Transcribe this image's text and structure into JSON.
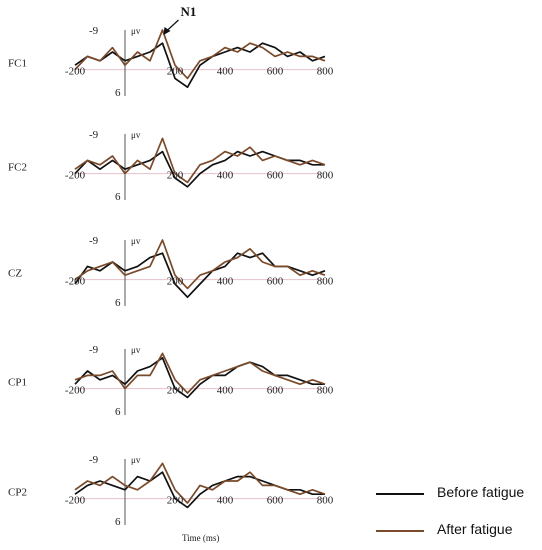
{
  "chart_data": {
    "type": "line",
    "xlabel": "Time (ms)",
    "ylabel_unit": "μv",
    "xlim": [
      -200,
      800
    ],
    "ylim": [
      -9,
      6
    ],
    "y_axis_inverted": true,
    "x_ticks": [
      "-200",
      "200",
      "400",
      "600",
      "800"
    ],
    "y_ticks": [
      "-9",
      "6"
    ],
    "annotation": {
      "text": "N1",
      "x": 150,
      "y": -9
    },
    "colors": {
      "before": "#111111",
      "after": "#7a4a2a",
      "baseline": "#e6c0c8"
    },
    "legend": {
      "before_label": "Before fatigue",
      "after_label": "After fatigue",
      "placement": "bottom-right"
    },
    "x": [
      -200,
      -150,
      -100,
      -50,
      0,
      50,
      100,
      150,
      200,
      250,
      300,
      350,
      400,
      450,
      500,
      550,
      600,
      650,
      700,
      750,
      800
    ],
    "panels": [
      {
        "channel": "FC1",
        "series": [
          {
            "name": "Before fatigue",
            "values": [
              -1,
              -3,
              -2,
              -4,
              -2,
              -3,
              -4,
              -6,
              2,
              4,
              -1,
              -3,
              -4,
              -5,
              -4,
              -6,
              -5,
              -3,
              -4,
              -2,
              -3
            ]
          },
          {
            "name": "After fatigue",
            "values": [
              0,
              -3,
              -2,
              -5,
              -1,
              -4,
              -2,
              -9,
              -1,
              2,
              -2,
              -3,
              -5,
              -4,
              -6,
              -5,
              -3,
              -4,
              -3,
              -3,
              -2
            ]
          }
        ]
      },
      {
        "channel": "FC2",
        "series": [
          {
            "name": "Before fatigue",
            "values": [
              0,
              -3,
              -1,
              -3,
              -1,
              -2,
              -3,
              -5,
              1,
              3,
              0,
              -2,
              -3,
              -5,
              -4,
              -5,
              -4,
              -3,
              -3,
              -2,
              -2
            ]
          },
          {
            "name": "After fatigue",
            "values": [
              -1,
              -3,
              -2,
              -4,
              0,
              -3,
              -1,
              -8,
              0,
              2,
              -2,
              -3,
              -5,
              -4,
              -6,
              -3,
              -4,
              -3,
              -2,
              -3,
              -2
            ]
          }
        ]
      },
      {
        "channel": "CZ",
        "series": [
          {
            "name": "Before fatigue",
            "values": [
              1,
              -3,
              -2,
              -4,
              -2,
              -3,
              -5,
              -6,
              1,
              4,
              1,
              -2,
              -3,
              -6,
              -5,
              -6,
              -3,
              -3,
              -2,
              -1,
              -2
            ]
          },
          {
            "name": "After fatigue",
            "values": [
              0,
              -2,
              -3,
              -4,
              -1,
              -2,
              -3,
              -9,
              -1,
              2,
              -1,
              -2,
              -4,
              -5,
              -7,
              -4,
              -3,
              -3,
              -1,
              -2,
              -1
            ]
          }
        ]
      },
      {
        "channel": "CP1",
        "series": [
          {
            "name": "Before fatigue",
            "values": [
              -1,
              -4,
              -2,
              -3,
              -1,
              -4,
              -5,
              -7,
              0,
              2,
              -1,
              -3,
              -3,
              -5,
              -6,
              -5,
              -3,
              -3,
              -2,
              -1,
              -1
            ]
          },
          {
            "name": "After fatigue",
            "values": [
              -2,
              -3,
              -3,
              -4,
              0,
              -3,
              -3,
              -8,
              -2,
              1,
              -2,
              -3,
              -4,
              -5,
              -6,
              -4,
              -3,
              -2,
              -1,
              -2,
              -1
            ]
          }
        ]
      },
      {
        "channel": "CP2",
        "series": [
          {
            "name": "Before fatigue",
            "values": [
              -1,
              -3,
              -4,
              -3,
              -2,
              -5,
              -4,
              -6,
              0,
              2,
              -1,
              -3,
              -4,
              -5,
              -5,
              -4,
              -3,
              -2,
              -2,
              -1,
              -1
            ]
          },
          {
            "name": "After fatigue",
            "values": [
              -2,
              -4,
              -3,
              -5,
              -3,
              -2,
              -4,
              -8,
              -2,
              1,
              -3,
              -2,
              -4,
              -4,
              -6,
              -3,
              -3,
              -2,
              -1,
              -2,
              -1
            ]
          }
        ]
      }
    ]
  }
}
